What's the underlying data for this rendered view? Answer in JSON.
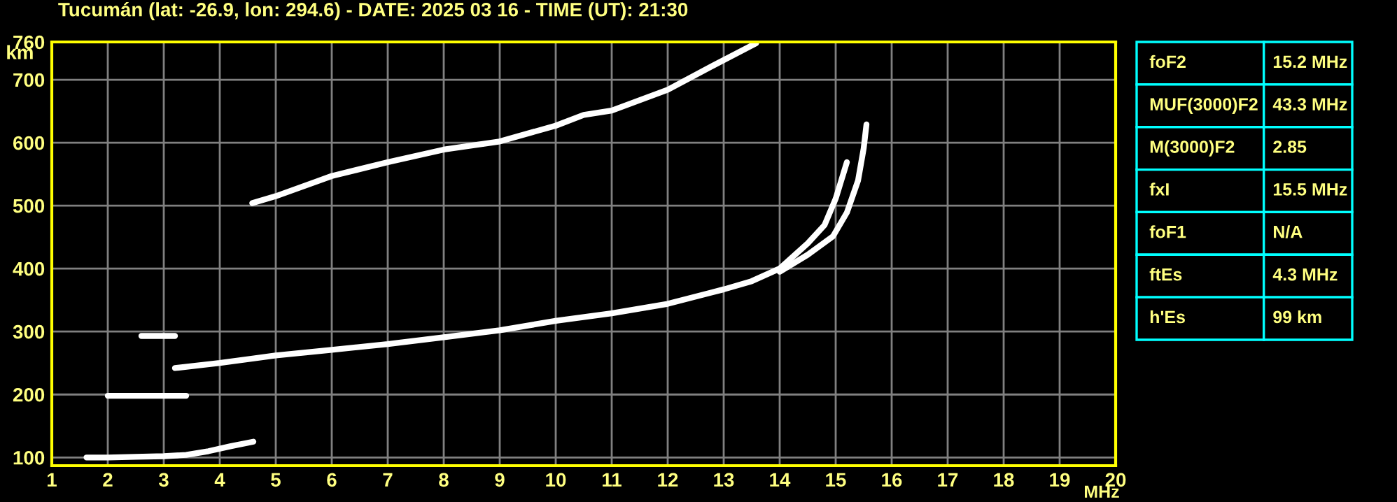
{
  "chart_data": [
    {
      "type": "line",
      "title": "Tucumán (lat: -26.9, lon: 294.6) - DATE: 2025 03 16 - TIME (UT): 21:30",
      "xlabel": "MHz",
      "ylabel": "km",
      "xlim": [
        1,
        20
      ],
      "ylim": [
        87,
        760
      ],
      "xticks": [
        1,
        2,
        3,
        4,
        5,
        6,
        7,
        8,
        9,
        10,
        11,
        12,
        13,
        14,
        15,
        16,
        17,
        18,
        19,
        20
      ],
      "yticks": [
        100,
        200,
        300,
        400,
        500,
        600,
        700,
        760
      ],
      "grid": true,
      "marker": "none",
      "line_style": "solid",
      "series": [
        {
          "color": "#ffffff",
          "x": [
            1.62,
            2.0,
            2.5,
            3.0,
            3.4,
            3.8,
            4.2,
            4.6
          ],
          "values": [
            100,
            100,
            101,
            102,
            104,
            110,
            118,
            125
          ]
        },
        {
          "color": "#ffffff",
          "x": [
            2.0,
            2.5,
            3.0,
            3.4
          ],
          "values": [
            198,
            198,
            198,
            198
          ]
        },
        {
          "color": "#ffffff",
          "x": [
            2.6,
            2.9,
            3.2
          ],
          "values": [
            293,
            293,
            293
          ]
        },
        {
          "color": "#ffffff",
          "x": [
            3.2,
            4.0,
            5.0,
            6.0,
            7.0,
            8.0,
            9.0,
            10.0,
            11.0,
            12.0,
            13.0,
            13.5,
            14.0,
            14.5,
            14.8,
            15.0,
            15.1,
            15.2
          ],
          "values": [
            242,
            250,
            262,
            271,
            280,
            291,
            302,
            317,
            329,
            344,
            367,
            380,
            400,
            440,
            469,
            511,
            540,
            569
          ]
        },
        {
          "color": "#ffffff",
          "x": [
            14.0,
            14.5,
            14.95,
            15.2,
            15.4,
            15.5,
            15.55
          ],
          "values": [
            395,
            422,
            451,
            489,
            540,
            591,
            629
          ]
        },
        {
          "color": "#ffffff",
          "x": [
            4.58,
            5.0,
            6.0,
            7.0,
            8.0,
            9.0,
            10.0,
            10.5,
            11.0,
            12.0,
            12.8,
            13.58
          ],
          "values": [
            504,
            515,
            547,
            569,
            589,
            602,
            627,
            644,
            651,
            684,
            722,
            758
          ]
        }
      ]
    },
    {
      "type": "other",
      "annotations": [
        "foF2",
        "15.2 MHz",
        "MUF(3000)F2",
        "43.3 MHz",
        "M(3000)F2",
        "2.85",
        "fxI",
        "15.5 MHz",
        "foF1",
        "N/A",
        "ftEs",
        "4.3 MHz",
        "h'Es",
        "99 km"
      ]
    }
  ]
}
